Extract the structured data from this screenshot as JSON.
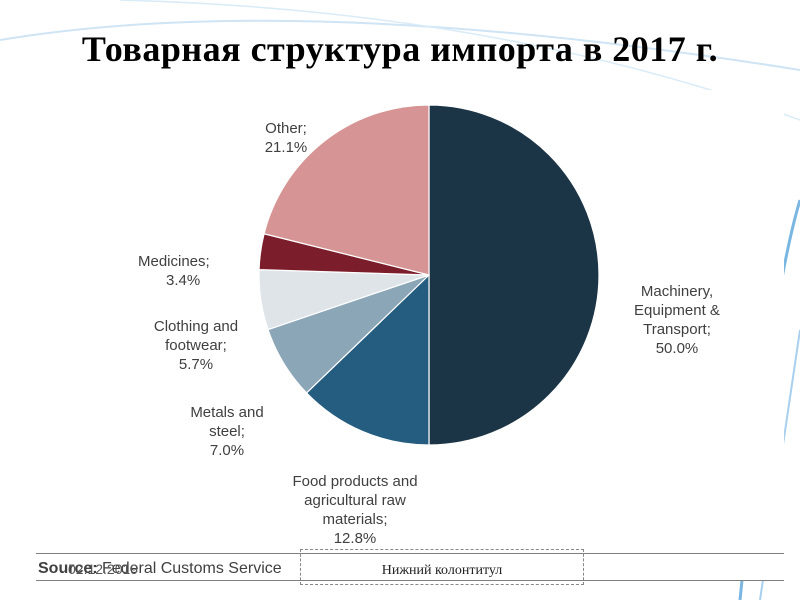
{
  "slide": {
    "title": "Товарная структура импорта в 2017 г.",
    "source_label": "Source:",
    "source_text": "Federal Customs Service",
    "date": "02.12.2019",
    "footer": "Нижний колонтитул"
  },
  "colors": {
    "machinery": "#1b3446",
    "food": "#255d80",
    "metals": "#8ba6b7",
    "clothing": "#dfe4e8",
    "medicines": "#7b1d2a",
    "other": "#d69594",
    "accent_line": "#7ab6e2"
  },
  "chart_data": {
    "type": "pie",
    "title": "",
    "slices": [
      {
        "label": "Machinery, Equipment & Transport;",
        "value": 50.0,
        "value_text": "50.0%",
        "color": "#1b3446"
      },
      {
        "label": "Food products and agricultural raw materials;",
        "value": 12.8,
        "value_text": "12.8%",
        "color": "#255d80"
      },
      {
        "label": "Metals and steel;",
        "value": 7.0,
        "value_text": "7.0%",
        "color": "#8ba6b7"
      },
      {
        "label": "Clothing and footwear;",
        "value": 5.7,
        "value_text": "5.7%",
        "color": "#dfe4e8"
      },
      {
        "label": "Medicines;",
        "value": 3.4,
        "value_text": "3.4%",
        "color": "#7b1d2a"
      },
      {
        "label": "Other;",
        "value": 21.1,
        "value_text": "21.1%",
        "color": "#d69594"
      }
    ],
    "start_angle": "12 o'clock",
    "direction": "clockwise"
  }
}
